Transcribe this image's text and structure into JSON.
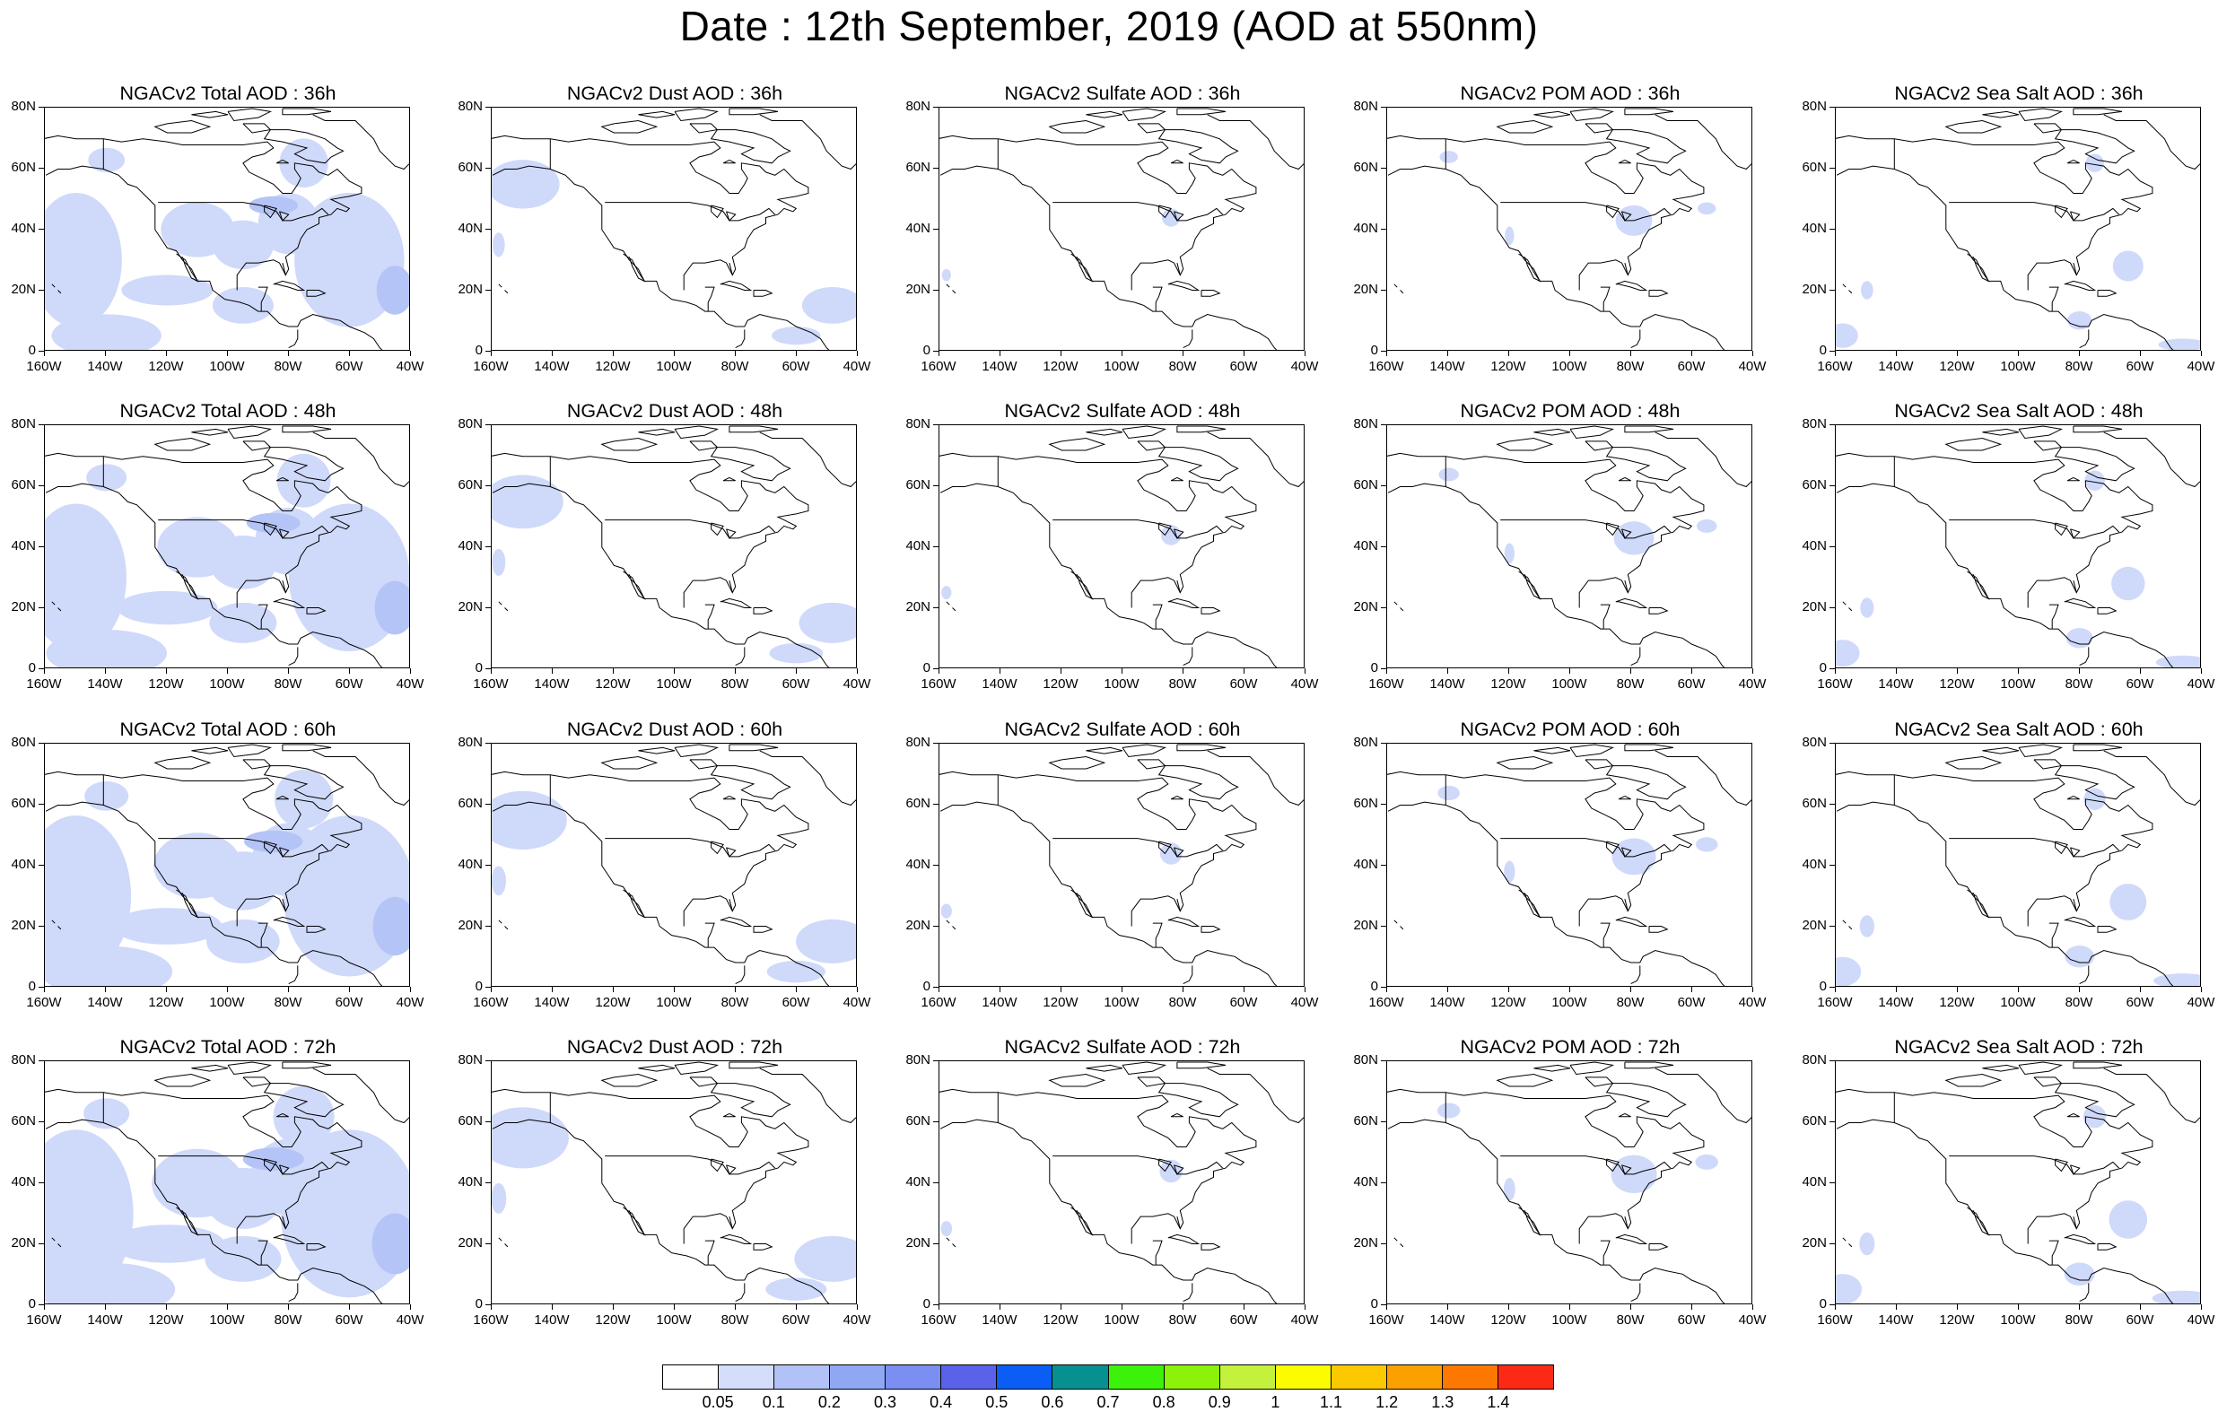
{
  "title": "Date : 12th September, 2019 (AOD at 550nm)",
  "axes": {
    "ylabels": [
      "80N",
      "60N",
      "40N",
      "20N",
      "0"
    ],
    "xlabels": [
      "160W",
      "140W",
      "120W",
      "100W",
      "80W",
      "60W",
      "40W"
    ]
  },
  "panels": [
    {
      "title": "NGACv2 Total AOD : 36h",
      "species": "total",
      "forecast_hour": 36
    },
    {
      "title": "NGACv2 Dust AOD : 36h",
      "species": "dust",
      "forecast_hour": 36
    },
    {
      "title": "NGACv2 Sulfate AOD : 36h",
      "species": "sulfate",
      "forecast_hour": 36
    },
    {
      "title": "NGACv2 POM AOD : 36h",
      "species": "pom",
      "forecast_hour": 36
    },
    {
      "title": "NGACv2 Sea Salt AOD : 36h",
      "species": "seasalt",
      "forecast_hour": 36
    },
    {
      "title": "NGACv2 Total AOD : 48h",
      "species": "total",
      "forecast_hour": 48
    },
    {
      "title": "NGACv2 Dust AOD : 48h",
      "species": "dust",
      "forecast_hour": 48
    },
    {
      "title": "NGACv2 Sulfate AOD : 48h",
      "species": "sulfate",
      "forecast_hour": 48
    },
    {
      "title": "NGACv2 POM AOD : 48h",
      "species": "pom",
      "forecast_hour": 48
    },
    {
      "title": "NGACv2 Sea Salt AOD : 48h",
      "species": "seasalt",
      "forecast_hour": 48
    },
    {
      "title": "NGACv2 Total AOD : 60h",
      "species": "total",
      "forecast_hour": 60
    },
    {
      "title": "NGACv2 Dust AOD : 60h",
      "species": "dust",
      "forecast_hour": 60
    },
    {
      "title": "NGACv2 Sulfate AOD : 60h",
      "species": "sulfate",
      "forecast_hour": 60
    },
    {
      "title": "NGACv2 POM AOD : 60h",
      "species": "pom",
      "forecast_hour": 60
    },
    {
      "title": "NGACv2 Sea Salt AOD : 60h",
      "species": "seasalt",
      "forecast_hour": 60
    },
    {
      "title": "NGACv2 Total AOD : 72h",
      "species": "total",
      "forecast_hour": 72
    },
    {
      "title": "NGACv2 Dust AOD : 72h",
      "species": "dust",
      "forecast_hour": 72
    },
    {
      "title": "NGACv2 Sulfate AOD : 72h",
      "species": "sulfate",
      "forecast_hour": 72
    },
    {
      "title": "NGACv2 POM AOD : 72h",
      "species": "pom",
      "forecast_hour": 72
    },
    {
      "title": "NGACv2 Sea Salt  AOD : 72h",
      "species": "seasalt",
      "forecast_hour": 72
    }
  ],
  "colorbar": {
    "labels": [
      "0.05",
      "0.1",
      "0.2",
      "0.3",
      "0.4",
      "0.5",
      "0.6",
      "0.7",
      "0.8",
      "0.9",
      "1",
      "1.1",
      "1.2",
      "1.3",
      "1.4"
    ],
    "colors": [
      "#ffffff",
      "#d4ddfa",
      "#b2c2f6",
      "#90a8f4",
      "#7b8ef2",
      "#5a62ec",
      "#0a5ef5",
      "#06908f",
      "#3cf20a",
      "#8cf20a",
      "#c4f23c",
      "#fcfc00",
      "#fcc800",
      "#fca000",
      "#fc7800",
      "#fc2a14"
    ]
  },
  "style": {
    "aod_fill_color": "#cfd9fa",
    "aod_fill_color_dark": "#b5c4f6",
    "coastline_color": "#000000"
  }
}
